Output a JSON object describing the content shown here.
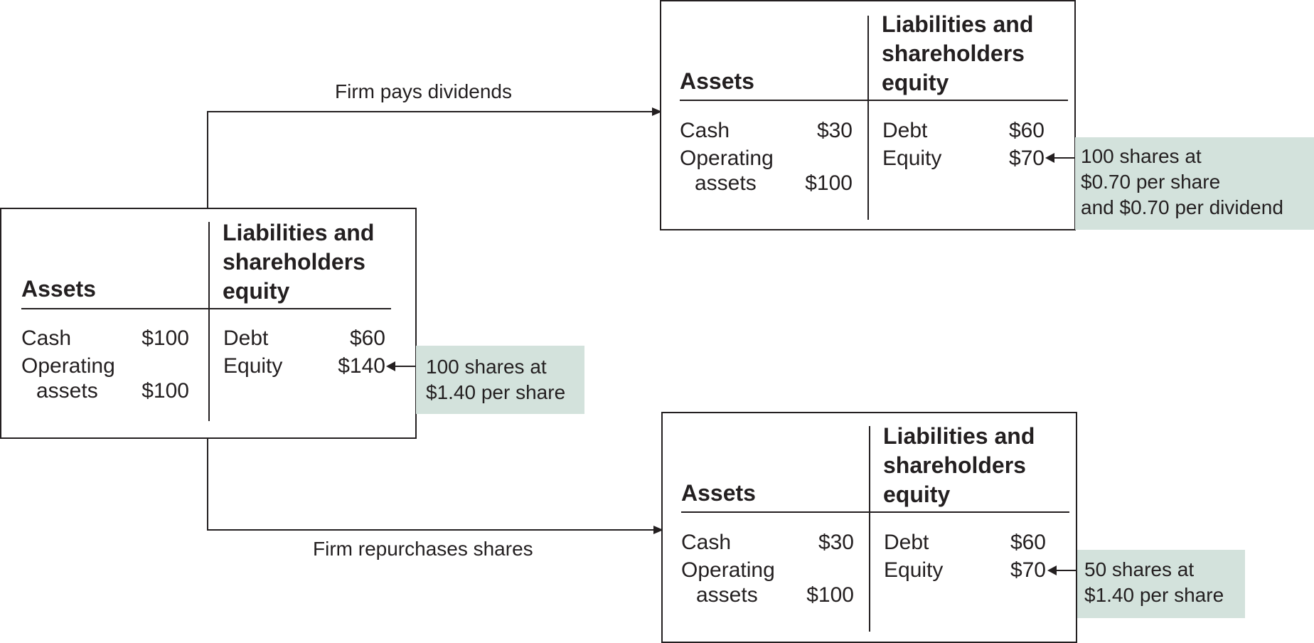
{
  "flows": {
    "dividends_label": "Firm pays dividends",
    "repurchase_label": "Firm repurchases shares"
  },
  "sheets": {
    "initial": {
      "assets_header": "Assets",
      "liabilities_header": "Liabilities and shareholders equity",
      "cash_label": "Cash",
      "cash_value": "$100",
      "operating_label": "Operating",
      "operating_label2": "assets",
      "operating_value": "$100",
      "debt_label": "Debt",
      "debt_value": "$60",
      "equity_label": "Equity",
      "equity_value": "$140",
      "note_lines": [
        "100 shares at",
        "$1.40 per share"
      ]
    },
    "dividend": {
      "assets_header": "Assets",
      "liabilities_header": "Liabilities and shareholders equity",
      "cash_label": "Cash",
      "cash_value": "$30",
      "operating_label": "Operating",
      "operating_label2": "assets",
      "operating_value": "$100",
      "debt_label": "Debt",
      "debt_value": "$60",
      "equity_label": "Equity",
      "equity_value": "$70",
      "note_lines": [
        "100 shares at",
        "$0.70 per share",
        "and $0.70 per dividend"
      ]
    },
    "repurchase": {
      "assets_header": "Assets",
      "liabilities_header": "Liabilities and shareholders equity",
      "cash_label": "Cash",
      "cash_value": "$30",
      "operating_label": "Operating",
      "operating_label2": "assets",
      "operating_value": "$100",
      "debt_label": "Debt",
      "debt_value": "$60",
      "equity_label": "Equity",
      "equity_value": "$70",
      "note_lines": [
        "50 shares at",
        "$1.40 per share"
      ]
    }
  },
  "colors": {
    "note_background": "#d3e2dc",
    "line": "#231f20"
  }
}
